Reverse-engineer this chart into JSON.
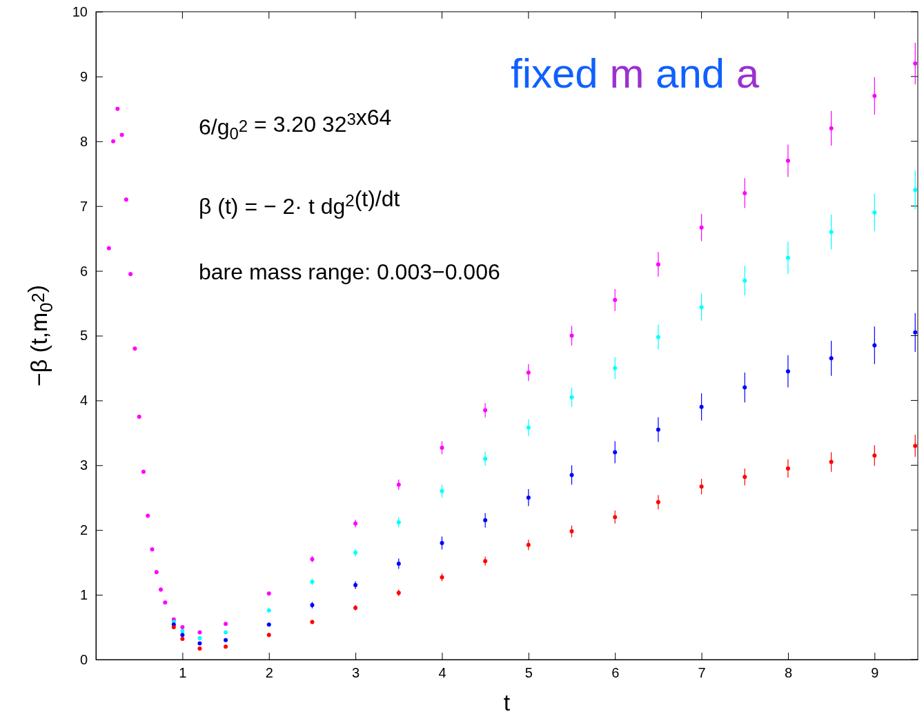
{
  "chart_data": {
    "type": "scatter",
    "xlabel": "t",
    "ylabel": "−β (t,m$_{0}$$^{2}$)",
    "xlim": [
      0,
      9.5
    ],
    "ylim": [
      0,
      10
    ],
    "xticks": [
      1,
      2,
      3,
      4,
      5,
      6,
      7,
      8,
      9
    ],
    "yticks": [
      0,
      1,
      2,
      3,
      4,
      5,
      6,
      7,
      8,
      9,
      10
    ],
    "grid": false,
    "marker": "circle",
    "annotations": [
      "fixed m and a",
      "6/g$_{0}$$^{2}$ = 3.20   32$^{3}$x64",
      "β (t) = − 2· t dg$^{2}$(t)/dt",
      "bare mass range: 0.003−0.006"
    ],
    "series": [
      {
        "color": "#ff00ff",
        "x": [
          0.15,
          0.2,
          0.25,
          0.3,
          0.35,
          0.4,
          0.45,
          0.5,
          0.55,
          0.6,
          0.65,
          0.7,
          0.75,
          0.8,
          0.9,
          1,
          1.2,
          1.5,
          2,
          2.5,
          3,
          3.5,
          4,
          4.5,
          5,
          5.5,
          6,
          6.5,
          7,
          7.5,
          8,
          8.5,
          9,
          9.47
        ],
        "values": [
          6.35,
          8.0,
          8.5,
          8.1,
          7.1,
          5.95,
          4.8,
          3.75,
          2.9,
          2.22,
          1.7,
          1.35,
          1.08,
          0.88,
          0.62,
          0.5,
          0.42,
          0.55,
          1.02,
          1.55,
          2.1,
          2.7,
          3.27,
          3.85,
          4.43,
          5.0,
          5.55,
          6.1,
          6.67,
          7.2,
          7.7,
          8.2,
          8.7,
          9.2
        ],
        "errors": [
          0.02,
          0.02,
          0.02,
          0.02,
          0.03,
          0.03,
          0.03,
          0.03,
          0.03,
          0.03,
          0.03,
          0.03,
          0.03,
          0.02,
          0.02,
          0.02,
          0.02,
          0.02,
          0.03,
          0.05,
          0.06,
          0.08,
          0.1,
          0.11,
          0.13,
          0.15,
          0.17,
          0.19,
          0.21,
          0.23,
          0.25,
          0.27,
          0.29,
          0.32
        ]
      },
      {
        "color": "#00ffff",
        "x": [
          0.9,
          1,
          1.2,
          1.5,
          2,
          2.5,
          3,
          3.5,
          4,
          4.5,
          5,
          5.5,
          6,
          6.5,
          7,
          7.5,
          8,
          8.5,
          9,
          9.47
        ],
        "values": [
          0.58,
          0.44,
          0.33,
          0.42,
          0.76,
          1.2,
          1.65,
          2.12,
          2.6,
          3.1,
          3.58,
          4.05,
          4.5,
          4.98,
          5.44,
          5.85,
          6.2,
          6.6,
          6.9,
          7.25
        ],
        "errors": [
          0.02,
          0.02,
          0.02,
          0.02,
          0.03,
          0.05,
          0.06,
          0.08,
          0.1,
          0.11,
          0.13,
          0.15,
          0.17,
          0.19,
          0.21,
          0.23,
          0.25,
          0.27,
          0.29,
          0.3
        ]
      },
      {
        "color": "#0000ff",
        "x": [
          0.9,
          1,
          1.2,
          1.5,
          2,
          2.5,
          3,
          3.5,
          4,
          4.5,
          5,
          5.5,
          6,
          6.5,
          7,
          7.5,
          8,
          8.5,
          9,
          9.47
        ],
        "values": [
          0.54,
          0.38,
          0.25,
          0.3,
          0.54,
          0.84,
          1.15,
          1.48,
          1.8,
          2.15,
          2.5,
          2.85,
          3.2,
          3.55,
          3.9,
          4.2,
          4.45,
          4.65,
          4.85,
          5.05
        ],
        "errors": [
          0.02,
          0.02,
          0.02,
          0.02,
          0.03,
          0.05,
          0.06,
          0.08,
          0.1,
          0.11,
          0.13,
          0.15,
          0.17,
          0.19,
          0.21,
          0.23,
          0.25,
          0.27,
          0.29,
          0.3
        ]
      },
      {
        "color": "#ff0000",
        "x": [
          0.9,
          1,
          1.2,
          1.5,
          2,
          2.5,
          3,
          3.5,
          4,
          4.5,
          5,
          5.5,
          6,
          6.5,
          7,
          7.5,
          8,
          8.5,
          9,
          9.47
        ],
        "values": [
          0.5,
          0.32,
          0.17,
          0.2,
          0.38,
          0.58,
          0.8,
          1.03,
          1.27,
          1.52,
          1.77,
          1.98,
          2.2,
          2.43,
          2.67,
          2.82,
          2.95,
          3.05,
          3.15,
          3.3
        ],
        "errors": [
          0.02,
          0.02,
          0.02,
          0.02,
          0.03,
          0.03,
          0.04,
          0.05,
          0.06,
          0.07,
          0.08,
          0.09,
          0.1,
          0.11,
          0.12,
          0.13,
          0.14,
          0.15,
          0.16,
          0.17
        ]
      }
    ]
  }
}
